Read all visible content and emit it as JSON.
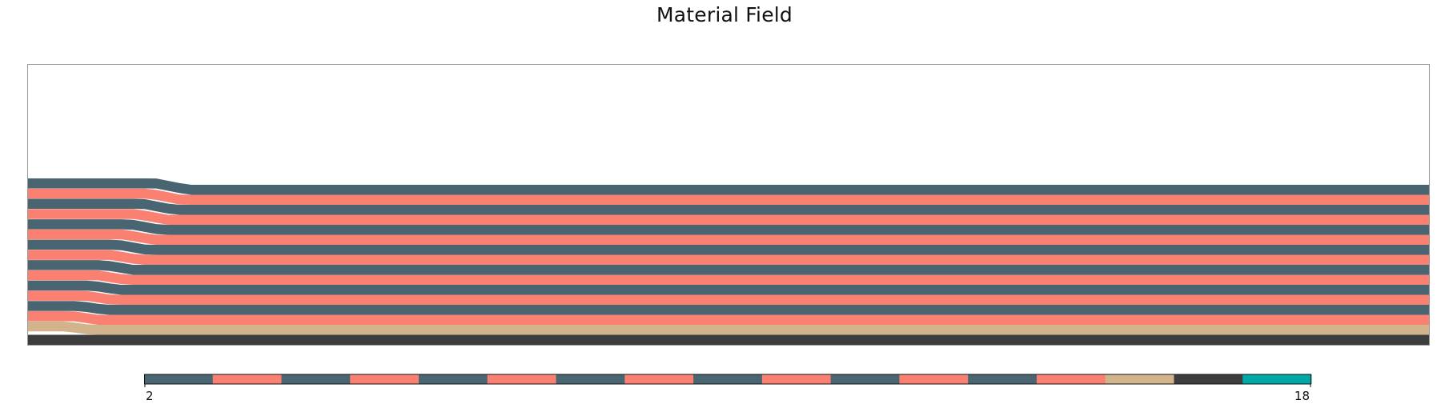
{
  "title": "Material Field",
  "chart_data": {
    "type": "heatmap",
    "title": "Material Field",
    "xlabel": "",
    "ylabel": "",
    "description_of_structure": "stratified layers from bottom to top with material ids",
    "layers_bottom_to_top": [
      {
        "material": 17,
        "color": "#3d3d3d"
      },
      {
        "material": 16,
        "color": "#d2b48c"
      },
      {
        "material": 15,
        "color": "#fa8072"
      },
      {
        "material": 14,
        "color": "#4a6572"
      },
      {
        "material": 13,
        "color": "#fa8072"
      },
      {
        "material": 12,
        "color": "#4a6572"
      },
      {
        "material": 11,
        "color": "#fa8072"
      },
      {
        "material": 10,
        "color": "#4a6572"
      },
      {
        "material": 9,
        "color": "#fa8072"
      },
      {
        "material": 8,
        "color": "#4a6572"
      },
      {
        "material": 7,
        "color": "#fa8072"
      },
      {
        "material": 6,
        "color": "#4a6572"
      },
      {
        "material": 5,
        "color": "#fa8072"
      },
      {
        "material": 4,
        "color": "#4a6572"
      },
      {
        "material": 3,
        "color": "#fa8072"
      },
      {
        "material": 2,
        "color": "#4a6572"
      }
    ],
    "colorbar": {
      "vmin": 2,
      "vmax": 18,
      "tick_labels": [
        "2",
        "18"
      ],
      "colors": [
        "#4a6572",
        "#fa8072",
        "#4a6572",
        "#fa8072",
        "#4a6572",
        "#fa8072",
        "#4a6572",
        "#fa8072",
        "#4a6572",
        "#fa8072",
        "#4a6572",
        "#fa8072",
        "#4a6572",
        "#fa8072",
        "#d2b48c",
        "#3d3d3d",
        "#00a9a5"
      ]
    },
    "grid": false,
    "legend": "colorbar-bottom"
  }
}
